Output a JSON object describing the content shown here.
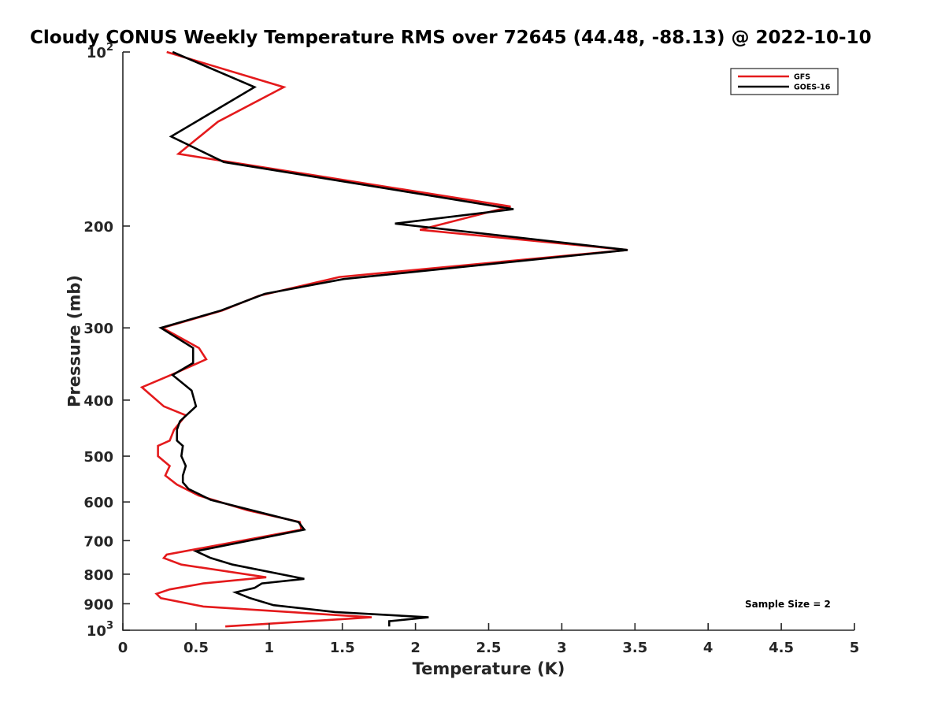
{
  "chart_data": {
    "type": "line",
    "title": "Cloudy CONUS Weekly Temperature RMS over 72645 (44.48, -88.13) @ 2022-10-10",
    "xlabel": "Temperature (K)",
    "ylabel": "Pressure (mb)",
    "xlim": [
      0,
      5
    ],
    "ylim": [
      100,
      1000
    ],
    "yscale": "log",
    "y_reversed": true,
    "grid": false,
    "legend_position": "top-right",
    "x_ticks": [
      "0",
      "0.5",
      "1",
      "1.5",
      "2",
      "2.5",
      "3",
      "3.5",
      "4",
      "4.5",
      "5"
    ],
    "y_ticks": [
      {
        "value": 100,
        "base": "10",
        "exp": "2"
      },
      {
        "value": 200,
        "label": "200"
      },
      {
        "value": 300,
        "label": "300"
      },
      {
        "value": 400,
        "label": "400"
      },
      {
        "value": 500,
        "label": "500"
      },
      {
        "value": 600,
        "label": "600"
      },
      {
        "value": 700,
        "label": "700"
      },
      {
        "value": 800,
        "label": "800"
      },
      {
        "value": 900,
        "label": "900"
      },
      {
        "value": 1000,
        "base": "10",
        "exp": "3"
      }
    ],
    "annotation": "Sample Size = 2",
    "series": [
      {
        "name": "GFS",
        "color": "#e41a1c",
        "points": [
          [
            0.3,
            100
          ],
          [
            1.1,
            115
          ],
          [
            0.65,
            132
          ],
          [
            0.38,
            150
          ],
          [
            2.65,
            185
          ],
          [
            2.03,
            203
          ],
          [
            3.45,
            220
          ],
          [
            1.48,
            245
          ],
          [
            0.93,
            264
          ],
          [
            0.68,
            280
          ],
          [
            0.27,
            300
          ],
          [
            0.52,
            325
          ],
          [
            0.57,
            340
          ],
          [
            0.35,
            360
          ],
          [
            0.13,
            380
          ],
          [
            0.28,
            410
          ],
          [
            0.43,
            425
          ],
          [
            0.35,
            450
          ],
          [
            0.32,
            470
          ],
          [
            0.24,
            480
          ],
          [
            0.24,
            500
          ],
          [
            0.32,
            520
          ],
          [
            0.29,
            540
          ],
          [
            0.37,
            560
          ],
          [
            0.52,
            585
          ],
          [
            0.85,
            620
          ],
          [
            1.21,
            650
          ],
          [
            1.22,
            670
          ],
          [
            0.3,
            740
          ],
          [
            0.28,
            750
          ],
          [
            0.4,
            770
          ],
          [
            0.98,
            810
          ],
          [
            0.55,
            830
          ],
          [
            0.32,
            850
          ],
          [
            0.23,
            865
          ],
          [
            0.26,
            880
          ],
          [
            0.55,
            910
          ],
          [
            1.7,
            950
          ],
          [
            0.7,
            985
          ]
        ]
      },
      {
        "name": "GOES-16",
        "color": "#000000",
        "points": [
          [
            0.34,
            100
          ],
          [
            0.9,
            115
          ],
          [
            0.33,
            140
          ],
          [
            0.69,
            155
          ],
          [
            2.67,
            187
          ],
          [
            1.86,
            198
          ],
          [
            3.45,
            220
          ],
          [
            1.51,
            247
          ],
          [
            0.97,
            262
          ],
          [
            0.67,
            280
          ],
          [
            0.26,
            300
          ],
          [
            0.48,
            325
          ],
          [
            0.48,
            345
          ],
          [
            0.34,
            362
          ],
          [
            0.47,
            385
          ],
          [
            0.5,
            410
          ],
          [
            0.39,
            435
          ],
          [
            0.37,
            450
          ],
          [
            0.37,
            470
          ],
          [
            0.41,
            480
          ],
          [
            0.4,
            500
          ],
          [
            0.43,
            520
          ],
          [
            0.41,
            540
          ],
          [
            0.41,
            555
          ],
          [
            0.45,
            570
          ],
          [
            0.6,
            595
          ],
          [
            1.2,
            650
          ],
          [
            1.24,
            670
          ],
          [
            0.5,
            730
          ],
          [
            0.6,
            750
          ],
          [
            0.75,
            770
          ],
          [
            1.24,
            815
          ],
          [
            0.95,
            830
          ],
          [
            0.9,
            845
          ],
          [
            0.77,
            860
          ],
          [
            0.87,
            880
          ],
          [
            1.03,
            905
          ],
          [
            1.45,
            930
          ],
          [
            2.09,
            950
          ],
          [
            1.82,
            965
          ],
          [
            1.82,
            985
          ]
        ]
      }
    ]
  }
}
